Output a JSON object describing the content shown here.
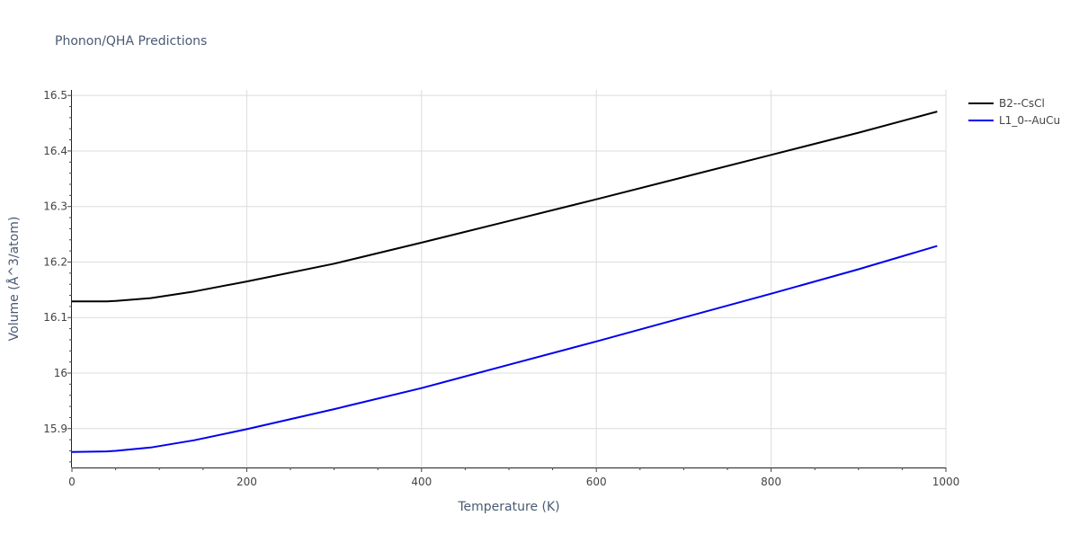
{
  "chart_data": {
    "type": "line",
    "title": "Phonon/QHA Predictions",
    "xlabel": "Temperature (K)",
    "ylabel": "Volume (Å^3/atom)",
    "xlim": [
      0,
      1000
    ],
    "ylim": [
      15.83,
      16.51
    ],
    "xticks": [
      0,
      200,
      400,
      600,
      800,
      1000
    ],
    "xtick_labels": [
      "0",
      "200",
      "400",
      "600",
      "800",
      "1000"
    ],
    "yticks": [
      15.9,
      16.0,
      16.1,
      16.2,
      16.3,
      16.4,
      16.5
    ],
    "ytick_labels": [
      "15.9",
      "16",
      "16.1",
      "16.2",
      "16.3",
      "16.4",
      "16.5"
    ],
    "grid": true,
    "legend_position": "top-right",
    "series": [
      {
        "name": "B2--CsCl",
        "color": "#000000",
        "x": [
          0,
          40,
          50,
          90,
          140,
          200,
          300,
          400,
          500,
          600,
          700,
          800,
          900,
          990
        ],
        "y": [
          16.129,
          16.129,
          16.13,
          16.135,
          16.147,
          16.165,
          16.197,
          16.235,
          16.274,
          16.313,
          16.353,
          16.393,
          16.433,
          16.471
        ]
      },
      {
        "name": "L1_0--AuCu",
        "color": "#0000ee",
        "x": [
          0,
          40,
          50,
          90,
          140,
          200,
          300,
          400,
          500,
          600,
          700,
          800,
          900,
          990
        ],
        "y": [
          15.858,
          15.859,
          15.86,
          15.866,
          15.879,
          15.899,
          15.935,
          15.973,
          16.015,
          16.057,
          16.1,
          16.143,
          16.187,
          16.229
        ]
      }
    ]
  }
}
